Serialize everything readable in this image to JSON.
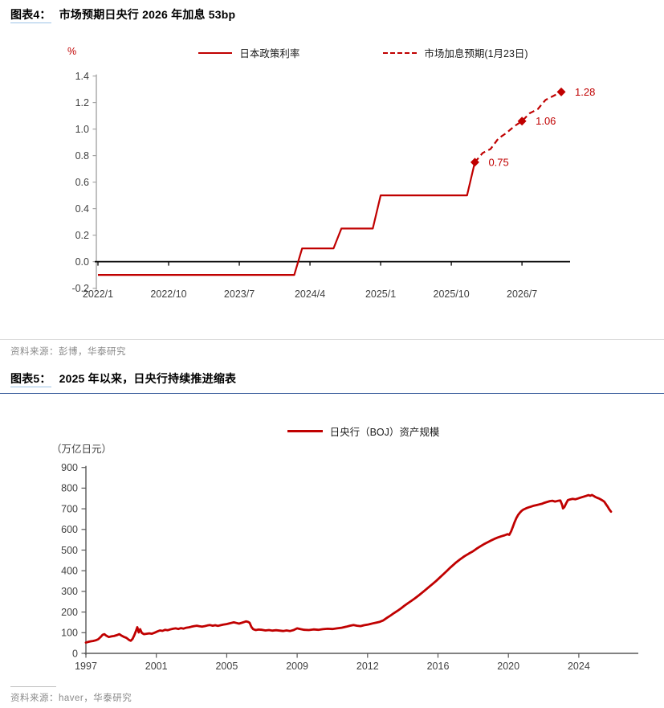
{
  "colors": {
    "series_red": "#C00000",
    "axis_gray": "#A6A6A6",
    "axis_dark": "#595959",
    "tick_label": "#3f3f3f",
    "zero_line": "#000000",
    "source_text": "#8a8a8a",
    "rule_light": "#DBDBDB",
    "rule_blue": "#2F5597",
    "tag_underline": "#9DC3E6"
  },
  "figure4": {
    "tag": "图表4：",
    "title": "市场预期日央行 2026 年加息 53bp",
    "unit": "%",
    "legend": [
      {
        "label": "日本政策利率",
        "style": "solid"
      },
      {
        "label": "市场加息预期(1月23日)",
        "style": "dashed"
      }
    ],
    "source": "资料来源：彭博，华泰研究"
  },
  "figure5": {
    "tag": "图表5：",
    "title": "2025 年以来，日央行持续推进缩表",
    "unit": "（万亿日元）",
    "legend": [
      {
        "label": "日央行（BOJ）资产规模",
        "style": "solid"
      }
    ],
    "source": "资料来源：haver，华泰研究"
  },
  "chart_data": [
    {
      "type": "line",
      "title": "市场预期日央行 2026 年加息 53bp",
      "ylabel": "%",
      "ylim": [
        -0.2,
        1.4
      ],
      "ytick_step": 0.2,
      "x_tick_labels": [
        "2022/1",
        "2022/10",
        "2023/7",
        "2024/4",
        "2025/1",
        "2025/10",
        "2026/7"
      ],
      "x_tick_months": [
        0,
        9,
        18,
        27,
        36,
        45,
        54
      ],
      "legend_position": "top-center",
      "grid": false,
      "series": [
        {
          "name": "日本政策利率",
          "style": "solid",
          "points": [
            [
              "2022/1",
              -0.1
            ],
            [
              "2024/2",
              -0.1
            ],
            [
              "2024/3",
              0.1
            ],
            [
              "2024/7",
              0.1
            ],
            [
              "2024/8",
              0.25
            ],
            [
              "2024/12",
              0.25
            ],
            [
              "2025/1",
              0.5
            ],
            [
              "2025/12",
              0.5
            ],
            [
              "2026/1",
              0.75
            ]
          ]
        },
        {
          "name": "市场加息预期(1月23日)",
          "style": "dashed",
          "points": [
            [
              "2026/1",
              0.75
            ],
            [
              "2026/2",
              0.82
            ],
            [
              "2026/3",
              0.85
            ],
            [
              "2026/4",
              0.93
            ],
            [
              "2026/5",
              0.97
            ],
            [
              "2026/6",
              1.02
            ],
            [
              "2026/7",
              1.06
            ],
            [
              "2026/8",
              1.12
            ],
            [
              "2026/9",
              1.15
            ],
            [
              "2026/10",
              1.22
            ],
            [
              "2026/11",
              1.25
            ],
            [
              "2026/12",
              1.28
            ]
          ]
        }
      ],
      "markers": [
        {
          "x": "2026/1",
          "y": 0.75,
          "label": "0.75"
        },
        {
          "x": "2026/7",
          "y": 1.06,
          "label": "1.06"
        },
        {
          "x": "2026/12",
          "y": 1.28,
          "label": "1.28"
        }
      ]
    },
    {
      "type": "line",
      "title": "日央行（BOJ）资产规模",
      "ylabel": "（万亿日元）",
      "ylim": [
        0,
        900
      ],
      "ytick_step": 100,
      "x_tick_labels": [
        "1997",
        "2001",
        "2005",
        "2009",
        "2012",
        "2016",
        "2020",
        "2024"
      ],
      "x_tick_years": [
        1997,
        2001,
        2005,
        2009,
        2012,
        2016,
        2020,
        2024
      ],
      "legend_position": "top-center",
      "grid": false,
      "series": [
        {
          "name": "日央行（BOJ）资产规模",
          "style": "solid",
          "points": [
            [
              1997.0,
              52
            ],
            [
              1997.1,
              55
            ],
            [
              1997.25,
              58
            ],
            [
              1997.4,
              60
            ],
            [
              1997.55,
              63
            ],
            [
              1997.7,
              68
            ],
            [
              1997.85,
              80
            ],
            [
              1997.95,
              90
            ],
            [
              1998.05,
              93
            ],
            [
              1998.15,
              86
            ],
            [
              1998.3,
              79
            ],
            [
              1998.45,
              82
            ],
            [
              1998.6,
              84
            ],
            [
              1998.75,
              88
            ],
            [
              1998.9,
              93
            ],
            [
              1999.0,
              87
            ],
            [
              1999.15,
              80
            ],
            [
              1999.3,
              75
            ],
            [
              1999.45,
              65
            ],
            [
              1999.55,
              61
            ],
            [
              1999.65,
              70
            ],
            [
              1999.75,
              88
            ],
            [
              1999.85,
              110
            ],
            [
              1999.92,
              127
            ],
            [
              2000.0,
              101
            ],
            [
              2000.08,
              117
            ],
            [
              2000.18,
              99
            ],
            [
              2000.3,
              93
            ],
            [
              2000.45,
              95
            ],
            [
              2000.6,
              97
            ],
            [
              2000.75,
              95
            ],
            [
              2000.9,
              100
            ],
            [
              2001.05,
              106
            ],
            [
              2001.2,
              111
            ],
            [
              2001.35,
              109
            ],
            [
              2001.5,
              114
            ],
            [
              2001.65,
              112
            ],
            [
              2001.8,
              116
            ],
            [
              2001.95,
              119
            ],
            [
              2002.1,
              121
            ],
            [
              2002.25,
              118
            ],
            [
              2002.4,
              122
            ],
            [
              2002.55,
              120
            ],
            [
              2002.7,
              124
            ],
            [
              2002.85,
              126
            ],
            [
              2003.0,
              129
            ],
            [
              2003.15,
              132
            ],
            [
              2003.3,
              134
            ],
            [
              2003.45,
              131
            ],
            [
              2003.6,
              129
            ],
            [
              2003.75,
              132
            ],
            [
              2003.9,
              135
            ],
            [
              2004.05,
              137
            ],
            [
              2004.2,
              134
            ],
            [
              2004.35,
              136
            ],
            [
              2004.5,
              133
            ],
            [
              2004.65,
              136
            ],
            [
              2004.8,
              139
            ],
            [
              2004.95,
              141
            ],
            [
              2005.1,
              144
            ],
            [
              2005.25,
              147
            ],
            [
              2005.4,
              150
            ],
            [
              2005.55,
              147
            ],
            [
              2005.7,
              144
            ],
            [
              2005.85,
              148
            ],
            [
              2006.0,
              152
            ],
            [
              2006.1,
              155
            ],
            [
              2006.2,
              153
            ],
            [
              2006.3,
              148
            ],
            [
              2006.4,
              128
            ],
            [
              2006.5,
              117
            ],
            [
              2006.65,
              113
            ],
            [
              2006.8,
              115
            ],
            [
              2007.0,
              114
            ],
            [
              2007.2,
              111
            ],
            [
              2007.4,
              113
            ],
            [
              2007.6,
              110
            ],
            [
              2007.8,
              112
            ],
            [
              2008.0,
              110
            ],
            [
              2008.2,
              108
            ],
            [
              2008.4,
              111
            ],
            [
              2008.6,
              108
            ],
            [
              2008.8,
              113
            ],
            [
              2009.0,
              121
            ],
            [
              2009.15,
              117
            ],
            [
              2009.3,
              114
            ],
            [
              2009.5,
              113
            ],
            [
              2009.7,
              116
            ],
            [
              2009.9,
              114
            ],
            [
              2010.1,
              117
            ],
            [
              2010.3,
              119
            ],
            [
              2010.5,
              118
            ],
            [
              2010.7,
              121
            ],
            [
              2010.9,
              124
            ],
            [
              2011.1,
              129
            ],
            [
              2011.25,
              134
            ],
            [
              2011.4,
              137
            ],
            [
              2011.55,
              134
            ],
            [
              2011.7,
              132
            ],
            [
              2011.85,
              136
            ],
            [
              2012.0,
              139
            ],
            [
              2012.15,
              142
            ],
            [
              2012.3,
              145
            ],
            [
              2012.5,
              149
            ],
            [
              2012.7,
              153
            ],
            [
              2012.9,
              160
            ],
            [
              2013.1,
              172
            ],
            [
              2013.3,
              183
            ],
            [
              2013.5,
              195
            ],
            [
              2013.7,
              206
            ],
            [
              2013.9,
              218
            ],
            [
              2014.1,
              231
            ],
            [
              2014.3,
              243
            ],
            [
              2014.5,
              255
            ],
            [
              2014.7,
              267
            ],
            [
              2014.9,
              280
            ],
            [
              2015.1,
              294
            ],
            [
              2015.3,
              308
            ],
            [
              2015.5,
              322
            ],
            [
              2015.7,
              336
            ],
            [
              2015.9,
              351
            ],
            [
              2016.1,
              367
            ],
            [
              2016.3,
              383
            ],
            [
              2016.5,
              399
            ],
            [
              2016.7,
              415
            ],
            [
              2017.0,
              438
            ],
            [
              2017.25,
              455
            ],
            [
              2017.5,
              470
            ],
            [
              2017.75,
              483
            ],
            [
              2018.0,
              495
            ],
            [
              2018.2,
              507
            ],
            [
              2018.4,
              518
            ],
            [
              2018.6,
              528
            ],
            [
              2018.8,
              537
            ],
            [
              2019.0,
              546
            ],
            [
              2019.2,
              554
            ],
            [
              2019.4,
              561
            ],
            [
              2019.6,
              567
            ],
            [
              2019.8,
              572
            ],
            [
              2019.95,
              577
            ],
            [
              2020.05,
              574
            ],
            [
              2020.15,
              590
            ],
            [
              2020.25,
              612
            ],
            [
              2020.35,
              635
            ],
            [
              2020.45,
              655
            ],
            [
              2020.55,
              670
            ],
            [
              2020.65,
              681
            ],
            [
              2020.75,
              690
            ],
            [
              2020.85,
              696
            ],
            [
              2021.0,
              702
            ],
            [
              2021.15,
              707
            ],
            [
              2021.3,
              711
            ],
            [
              2021.45,
              715
            ],
            [
              2021.6,
              718
            ],
            [
              2021.75,
              721
            ],
            [
              2021.9,
              724
            ],
            [
              2022.05,
              729
            ],
            [
              2022.2,
              733
            ],
            [
              2022.35,
              737
            ],
            [
              2022.5,
              739
            ],
            [
              2022.65,
              735
            ],
            [
              2022.8,
              738
            ],
            [
              2022.95,
              740
            ],
            [
              2023.05,
              719
            ],
            [
              2023.1,
              702
            ],
            [
              2023.18,
              708
            ],
            [
              2023.28,
              726
            ],
            [
              2023.38,
              742
            ],
            [
              2023.5,
              745
            ],
            [
              2023.65,
              748
            ],
            [
              2023.8,
              746
            ],
            [
              2023.95,
              750
            ],
            [
              2024.1,
              754
            ],
            [
              2024.25,
              758
            ],
            [
              2024.4,
              762
            ],
            [
              2024.55,
              766
            ],
            [
              2024.65,
              763
            ],
            [
              2024.75,
              767
            ],
            [
              2024.85,
              762
            ],
            [
              2024.95,
              757
            ],
            [
              2025.05,
              753
            ],
            [
              2025.15,
              750
            ],
            [
              2025.25,
              745
            ],
            [
              2025.35,
              740
            ],
            [
              2025.45,
              734
            ],
            [
              2025.55,
              721
            ],
            [
              2025.65,
              709
            ],
            [
              2025.72,
              699
            ],
            [
              2025.78,
              692
            ],
            [
              2025.83,
              686
            ]
          ]
        }
      ]
    }
  ]
}
